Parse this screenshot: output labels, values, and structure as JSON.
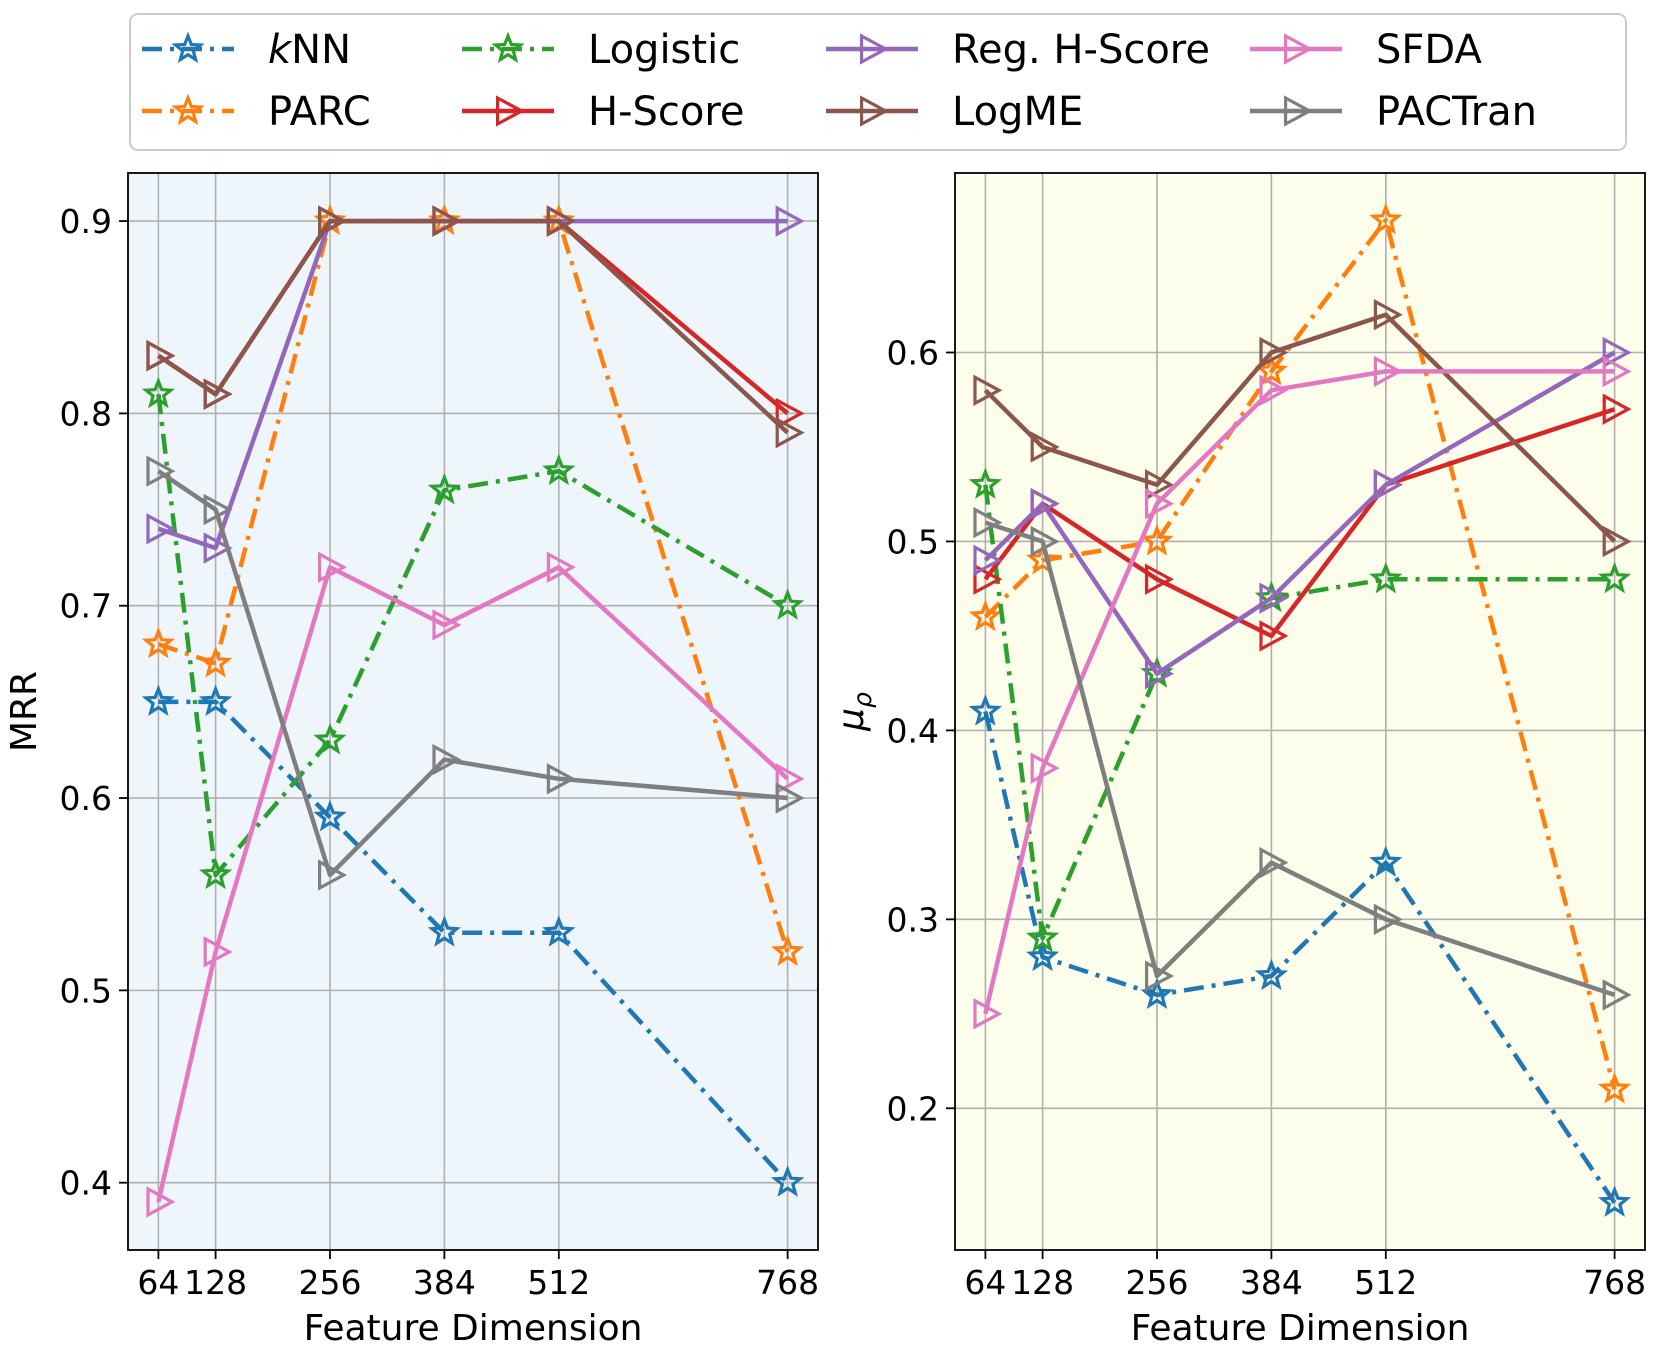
{
  "legend": {
    "entries": [
      {
        "label": "kNN",
        "italic_prefix": "k",
        "rest": "NN",
        "color": "#1f77b4",
        "marker": "star",
        "dash": "dashdot"
      },
      {
        "label": "PARC",
        "color": "#ff7f0e",
        "marker": "star",
        "dash": "dashdot"
      },
      {
        "label": "Logistic",
        "color": "#2ca02c",
        "marker": "star",
        "dash": "dashdot"
      },
      {
        "label": "H-Score",
        "color": "#d62728",
        "marker": "triangle",
        "dash": "solid"
      },
      {
        "label": "Reg. H-Score",
        "color": "#9467bd",
        "marker": "triangle",
        "dash": "solid"
      },
      {
        "label": "LogME",
        "color": "#8c564b",
        "marker": "triangle",
        "dash": "solid"
      },
      {
        "label": "SFDA",
        "color": "#e377c2",
        "marker": "triangle",
        "dash": "solid"
      },
      {
        "label": "PACTran",
        "color": "#7f7f7f",
        "marker": "triangle",
        "dash": "solid"
      }
    ]
  },
  "chart_data": [
    {
      "type": "line",
      "panel": "left",
      "background": "#eef6fc",
      "xlabel": "Feature Dimension",
      "ylabel": "MRR",
      "x": [
        64,
        128,
        256,
        384,
        512,
        768
      ],
      "xticks": [
        "64",
        "128",
        "256",
        "384",
        "512",
        "768"
      ],
      "xlim": [
        30,
        802
      ],
      "ylim": [
        0.365,
        0.925
      ],
      "yticks": [
        0.4,
        0.5,
        0.6,
        0.7,
        0.8,
        0.9
      ],
      "ytick_labels": [
        "0.4",
        "0.5",
        "0.6",
        "0.7",
        "0.8",
        "0.9"
      ],
      "grid": true,
      "series": [
        {
          "name": "kNN",
          "values": [
            0.65,
            0.65,
            0.59,
            0.53,
            0.53,
            0.4
          ]
        },
        {
          "name": "PARC",
          "values": [
            0.68,
            0.67,
            0.9,
            0.9,
            0.9,
            0.52
          ]
        },
        {
          "name": "Logistic",
          "values": [
            0.81,
            0.56,
            0.63,
            0.76,
            0.77,
            0.7
          ]
        },
        {
          "name": "H-Score",
          "values": [
            0.83,
            0.81,
            0.9,
            0.9,
            0.9,
            0.8
          ]
        },
        {
          "name": "Reg. H-Score",
          "values": [
            0.74,
            0.73,
            0.9,
            0.9,
            0.9,
            0.9
          ]
        },
        {
          "name": "LogME",
          "values": [
            0.83,
            0.81,
            0.9,
            0.9,
            0.9,
            0.79
          ]
        },
        {
          "name": "SFDA",
          "values": [
            0.39,
            0.52,
            0.72,
            0.69,
            0.72,
            0.61
          ]
        },
        {
          "name": "PACTran",
          "values": [
            0.77,
            0.75,
            0.56,
            0.62,
            0.61,
            0.6
          ]
        }
      ]
    },
    {
      "type": "line",
      "panel": "right",
      "background": "#fdfdeb",
      "xlabel": "Feature Dimension",
      "ylabel": "μρ",
      "ylabel_main": "μ",
      "ylabel_sub": "ρ",
      "x": [
        64,
        128,
        256,
        384,
        512,
        768
      ],
      "xticks": [
        "64",
        "128",
        "256",
        "384",
        "512",
        "768"
      ],
      "xlim": [
        30,
        802
      ],
      "ylim": [
        0.125,
        0.695
      ],
      "yticks": [
        0.2,
        0.3,
        0.4,
        0.5,
        0.6
      ],
      "ytick_labels": [
        "0.2",
        "0.3",
        "0.4",
        "0.5",
        "0.6"
      ],
      "grid": true,
      "series": [
        {
          "name": "kNN",
          "values": [
            0.41,
            0.28,
            0.26,
            0.27,
            0.33,
            0.15
          ]
        },
        {
          "name": "PARC",
          "values": [
            0.46,
            0.49,
            0.5,
            0.59,
            0.67,
            0.21
          ]
        },
        {
          "name": "Logistic",
          "values": [
            0.53,
            0.29,
            0.43,
            0.47,
            0.48,
            0.48
          ]
        },
        {
          "name": "H-Score",
          "values": [
            0.48,
            0.52,
            0.48,
            0.45,
            0.53,
            0.57
          ]
        },
        {
          "name": "Reg. H-Score",
          "values": [
            0.49,
            0.52,
            0.43,
            0.47,
            0.53,
            0.6
          ]
        },
        {
          "name": "LogME",
          "values": [
            0.58,
            0.55,
            0.53,
            0.6,
            0.62,
            0.5
          ]
        },
        {
          "name": "SFDA",
          "values": [
            0.25,
            0.38,
            0.52,
            0.58,
            0.59,
            0.59
          ]
        },
        {
          "name": "PACTran",
          "values": [
            0.51,
            0.5,
            0.27,
            0.33,
            0.3,
            0.26
          ]
        }
      ]
    }
  ]
}
